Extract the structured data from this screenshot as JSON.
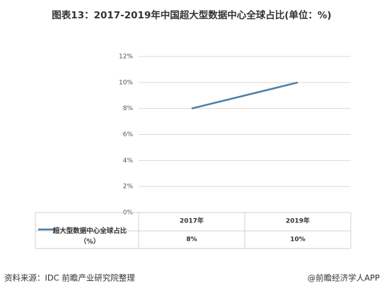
{
  "chart_data": {
    "type": "line",
    "title": "图表13：2017-2019年中国超大型数据中心全球占比(单位：%)",
    "categories": [
      "2017年",
      "2019年"
    ],
    "series": [
      {
        "name": "超大型数据中心全球占比（%）",
        "color": "#4a7ea8",
        "values": [
          8,
          10
        ],
        "value_labels": [
          "8%",
          "10%"
        ]
      }
    ],
    "ylim": [
      0,
      12
    ],
    "yticks": [
      {
        "value": 0,
        "label": "0%"
      },
      {
        "value": 2,
        "label": "2%"
      },
      {
        "value": 4,
        "label": "4%"
      },
      {
        "value": 6,
        "label": "6%"
      },
      {
        "value": 8,
        "label": "8%"
      },
      {
        "value": 10,
        "label": "10%"
      },
      {
        "value": 12,
        "label": "12%"
      }
    ],
    "grid": true,
    "source": "资料来源：IDC 前瞻产业研究院整理",
    "credit": "@前瞻经济学人APP"
  }
}
